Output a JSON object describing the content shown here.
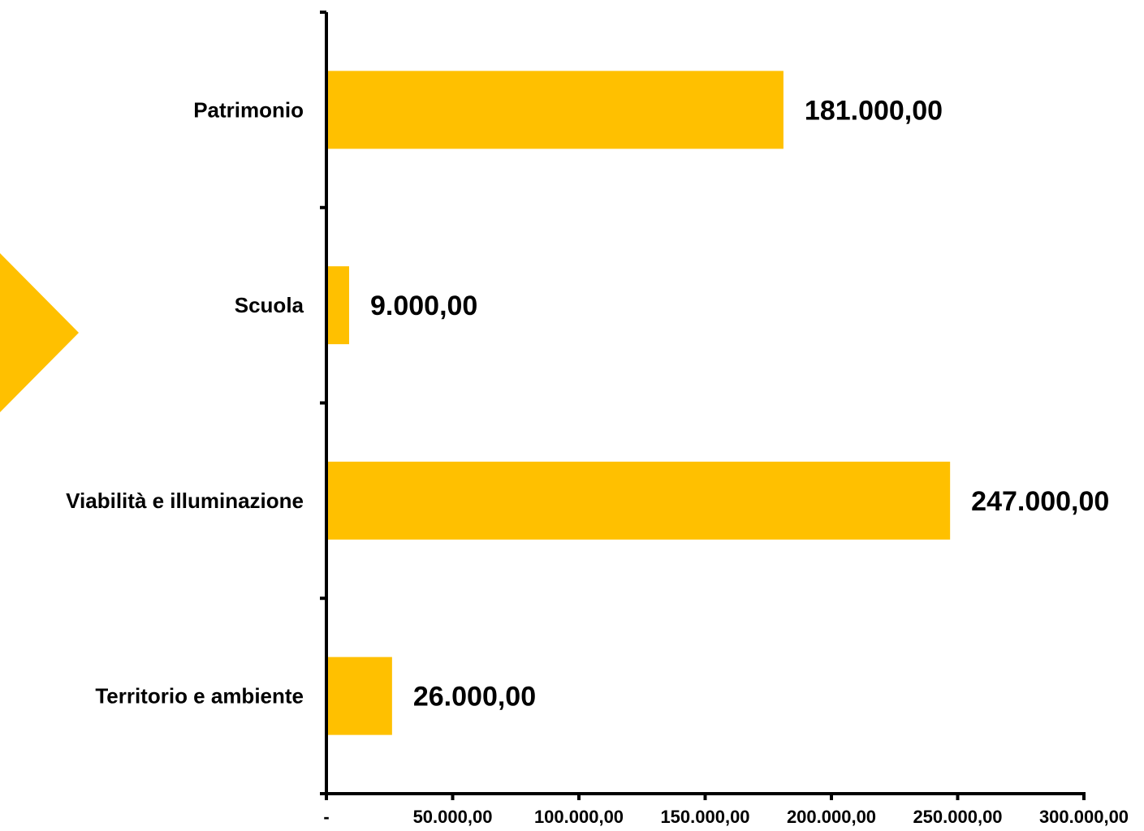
{
  "chart_data": {
    "type": "bar",
    "orientation": "horizontal",
    "categories": [
      "Patrimonio",
      "Scuola",
      "Viabilità e illuminazione",
      "Territorio e ambiente"
    ],
    "values": [
      181000,
      9000,
      247000,
      26000
    ],
    "value_labels": [
      "181.000,00",
      "9.000,00",
      "247.000,00",
      "26.000,00"
    ],
    "xlim": [
      0,
      300000
    ],
    "x_ticks": [
      0,
      50000,
      100000,
      150000,
      200000,
      250000,
      300000
    ],
    "x_tick_labels": [
      "-",
      "50.000,00",
      "100.000,00",
      "150.000,00",
      "200.000,00",
      "250.000,00",
      "300.000,00"
    ],
    "title": "",
    "xlabel": "",
    "ylabel": "",
    "grid": false,
    "legend": "none",
    "bar_color": "#FFC000",
    "axis_color": "#000000"
  },
  "decoration": {
    "arrow_color": "#FFC000",
    "arrow_icon": "triangle-pointer-icon"
  }
}
